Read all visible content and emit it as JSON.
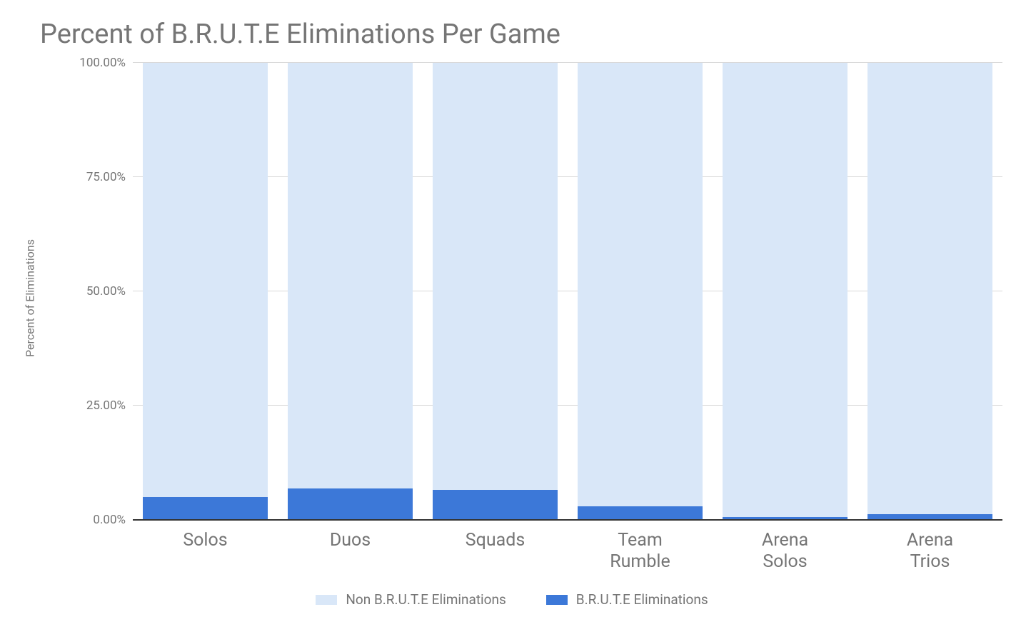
{
  "chart": {
    "type": "stacked-bar-100",
    "title": "Percent of B.R.U.T.E Eliminations Per Game",
    "title_fontsize": 38,
    "title_color": "#757575",
    "background_color": "#ffffff",
    "y_axis": {
      "title": "Percent of Eliminations",
      "title_fontsize": 16,
      "min": 0,
      "max": 100,
      "tick_step": 25,
      "tick_labels": [
        "0.00%",
        "25.00%",
        "50.00%",
        "75.00%",
        "100.00%"
      ],
      "tick_color": "#757575",
      "grid_color": "#d9d9d9",
      "baseline_color": "#333333"
    },
    "categories": [
      "Solos",
      "Duos",
      "Squads",
      "Team\nRumble",
      "Arena\nSolos",
      "Arena\nTrios"
    ],
    "x_label_fontsize": 25,
    "x_label_color": "#757575",
    "series": [
      {
        "name": "Non B.R.U.T.E Eliminations",
        "color": "#d9e7f8",
        "values": [
          95.0,
          93.2,
          93.5,
          97.0,
          99.3,
          98.8
        ]
      },
      {
        "name": "B.R.U.T.E Eliminations",
        "color": "#3c78d8",
        "values": [
          5.0,
          6.8,
          6.5,
          3.0,
          0.7,
          1.2
        ]
      }
    ],
    "bar_width_ratio": 0.86,
    "legend": {
      "position": "bottom",
      "fontsize": 19,
      "text_color": "#757575",
      "swatch_width": 30,
      "swatch_height": 14
    }
  }
}
